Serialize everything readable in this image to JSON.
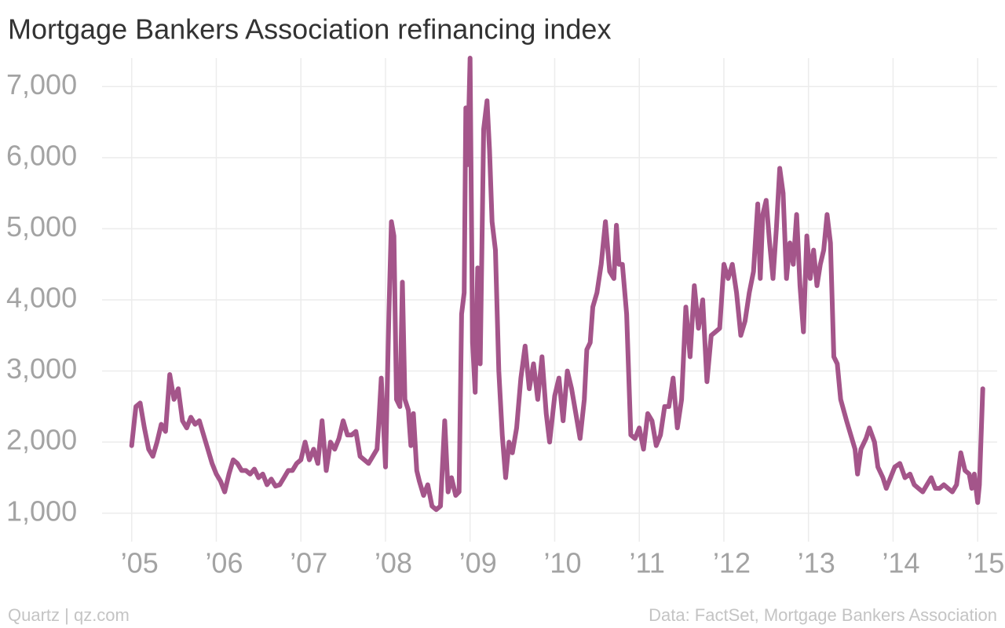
{
  "chart_data": {
    "type": "line",
    "title": "Mortgage Bankers Association refinancing index",
    "credit": "Quartz | qz.com",
    "source": "Data: FactSet, Mortgage Bankers Association",
    "color": "#a4558a",
    "grid": true,
    "xlim": [
      2004.65,
      2015.23
    ],
    "ylim": [
      600,
      7400
    ],
    "yticks": [
      {
        "value": 1000,
        "label": "1,000"
      },
      {
        "value": 2000,
        "label": "2,000"
      },
      {
        "value": 3000,
        "label": "3,000"
      },
      {
        "value": 4000,
        "label": "4,000"
      },
      {
        "value": 5000,
        "label": "5,000"
      },
      {
        "value": 6000,
        "label": "6,000"
      },
      {
        "value": 7000,
        "label": "7,000"
      }
    ],
    "xticks": [
      {
        "value": 2005,
        "label": "’05"
      },
      {
        "value": 2006,
        "label": "’06"
      },
      {
        "value": 2007,
        "label": "’07"
      },
      {
        "value": 2008,
        "label": "’08"
      },
      {
        "value": 2009,
        "label": "’09"
      },
      {
        "value": 2010,
        "label": "’10"
      },
      {
        "value": 2011,
        "label": "’11"
      },
      {
        "value": 2012,
        "label": "’12"
      },
      {
        "value": 2013,
        "label": "’13"
      },
      {
        "value": 2014,
        "label": "’14"
      },
      {
        "value": 2015,
        "label": "’15"
      }
    ],
    "x": [
      2005.0,
      2005.05,
      2005.1,
      2005.15,
      2005.2,
      2005.25,
      2005.3,
      2005.35,
      2005.4,
      2005.45,
      2005.5,
      2005.55,
      2005.6,
      2005.65,
      2005.7,
      2005.75,
      2005.8,
      2005.85,
      2005.9,
      2005.95,
      2006.0,
      2006.05,
      2006.1,
      2006.15,
      2006.2,
      2006.25,
      2006.3,
      2006.35,
      2006.4,
      2006.45,
      2006.5,
      2006.55,
      2006.6,
      2006.65,
      2006.7,
      2006.75,
      2006.8,
      2006.85,
      2006.9,
      2006.95,
      2007.0,
      2007.05,
      2007.1,
      2007.15,
      2007.2,
      2007.25,
      2007.3,
      2007.35,
      2007.4,
      2007.45,
      2007.5,
      2007.55,
      2007.6,
      2007.65,
      2007.7,
      2007.75,
      2007.8,
      2007.85,
      2007.9,
      2007.92,
      2007.95,
      2008.0,
      2008.04,
      2008.07,
      2008.1,
      2008.13,
      2008.17,
      2008.2,
      2008.23,
      2008.27,
      2008.3,
      2008.33,
      2008.37,
      2008.4,
      2008.45,
      2008.5,
      2008.55,
      2008.6,
      2008.65,
      2008.7,
      2008.74,
      2008.78,
      2008.83,
      2008.87,
      2008.9,
      2008.93,
      2008.95,
      2008.97,
      2009.0,
      2009.03,
      2009.06,
      2009.09,
      2009.12,
      2009.16,
      2009.2,
      2009.23,
      2009.26,
      2009.3,
      2009.34,
      2009.38,
      2009.42,
      2009.46,
      2009.5,
      2009.55,
      2009.6,
      2009.65,
      2009.7,
      2009.75,
      2009.8,
      2009.85,
      2009.9,
      2009.94,
      2010.0,
      2010.05,
      2010.1,
      2010.15,
      2010.2,
      2010.25,
      2010.3,
      2010.35,
      2010.38,
      2010.42,
      2010.45,
      2010.5,
      2010.55,
      2010.6,
      2010.65,
      2010.7,
      2010.73,
      2010.76,
      2010.8,
      2010.85,
      2010.9,
      2010.95,
      2011.0,
      2011.05,
      2011.1,
      2011.15,
      2011.2,
      2011.25,
      2011.3,
      2011.35,
      2011.4,
      2011.45,
      2011.5,
      2011.55,
      2011.6,
      2011.65,
      2011.7,
      2011.75,
      2011.8,
      2011.85,
      2011.9,
      2011.95,
      2012.0,
      2012.05,
      2012.1,
      2012.15,
      2012.2,
      2012.25,
      2012.3,
      2012.35,
      2012.4,
      2012.43,
      2012.46,
      2012.5,
      2012.54,
      2012.58,
      2012.62,
      2012.66,
      2012.7,
      2012.74,
      2012.78,
      2012.82,
      2012.86,
      2012.9,
      2012.94,
      2012.98,
      2013.02,
      2013.06,
      2013.1,
      2013.14,
      2013.18,
      2013.22,
      2013.26,
      2013.3,
      2013.34,
      2013.38,
      2013.45,
      2013.5,
      2013.55,
      2013.58,
      2013.62,
      2013.68,
      2013.72,
      2013.78,
      2013.82,
      2013.88,
      2013.92,
      2013.97,
      2014.02,
      2014.08,
      2014.14,
      2014.2,
      2014.25,
      2014.3,
      2014.35,
      2014.4,
      2014.45,
      2014.5,
      2014.55,
      2014.6,
      2014.65,
      2014.7,
      2014.75,
      2014.8,
      2014.85,
      2014.9,
      2014.93,
      2014.96,
      2015.0,
      2015.02,
      2015.06
    ],
    "values": [
      1950,
      2500,
      2550,
      2200,
      1900,
      1800,
      2000,
      2250,
      2150,
      2950,
      2600,
      2750,
      2300,
      2200,
      2350,
      2250,
      2300,
      2100,
      1900,
      1700,
      1550,
      1450,
      1300,
      1550,
      1750,
      1700,
      1600,
      1600,
      1550,
      1620,
      1500,
      1550,
      1400,
      1480,
      1380,
      1400,
      1500,
      1600,
      1600,
      1700,
      1750,
      2000,
      1750,
      1900,
      1700,
      2300,
      1600,
      2000,
      1900,
      2050,
      2300,
      2100,
      2100,
      2150,
      1800,
      1750,
      1700,
      1800,
      1900,
      2250,
      2900,
      1650,
      3800,
      5100,
      4900,
      2600,
      2500,
      4250,
      2600,
      2450,
      1950,
      2400,
      1600,
      1450,
      1250,
      1400,
      1100,
      1050,
      1100,
      2300,
      1300,
      1500,
      1250,
      1300,
      3800,
      4100,
      6700,
      5900,
      7400,
      3400,
      2700,
      4450,
      3100,
      6400,
      6800,
      6100,
      5100,
      4700,
      3000,
      2100,
      1500,
      2000,
      1850,
      2200,
      2900,
      3350,
      2750,
      3100,
      2600,
      3200,
      2400,
      2000,
      2650,
      2900,
      2300,
      3000,
      2750,
      2400,
      2050,
      2600,
      3300,
      3400,
      3900,
      4100,
      4500,
      5100,
      4400,
      4300,
      5050,
      4500,
      4500,
      3800,
      2100,
      2050,
      2200,
      1900,
      2400,
      2300,
      1950,
      2100,
      2500,
      2500,
      2900,
      2200,
      2600,
      3900,
      3200,
      4200,
      3600,
      4000,
      2850,
      3500,
      3550,
      3600,
      4500,
      4300,
      4500,
      4100,
      3500,
      3700,
      4100,
      4400,
      5350,
      4300,
      5200,
      5400,
      4800,
      4300,
      5000,
      5850,
      5500,
      4300,
      4800,
      4500,
      5200,
      4200,
      3550,
      4900,
      4300,
      4700,
      4200,
      4500,
      4700,
      5200,
      4800,
      3200,
      3100,
      2600,
      2300,
      2100,
      1900,
      1550,
      1900,
      2050,
      2200,
      2000,
      1650,
      1500,
      1350,
      1500,
      1650,
      1700,
      1500,
      1550,
      1400,
      1350,
      1300,
      1400,
      1500,
      1350,
      1350,
      1400,
      1350,
      1300,
      1400,
      1850,
      1600,
      1550,
      1350,
      1550,
      1150,
      1400,
      2750
    ]
  }
}
